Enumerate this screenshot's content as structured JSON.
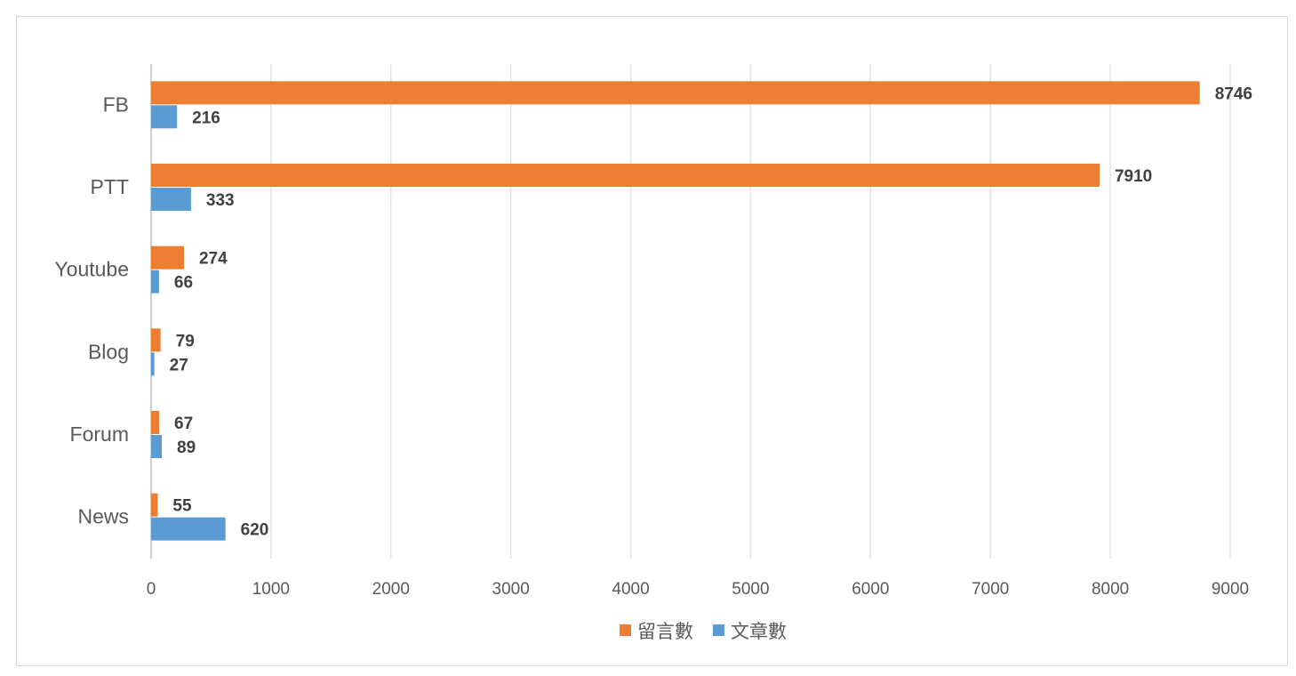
{
  "chart_data": {
    "type": "bar",
    "orientation": "horizontal",
    "title": "",
    "xlabel": "",
    "ylabel": "",
    "categories": [
      "FB",
      "PTT",
      "Youtube",
      "Blog",
      "Forum",
      "News"
    ],
    "series": [
      {
        "name": "留言數",
        "color": "#ED7D31",
        "values": [
          8746,
          7910,
          274,
          79,
          67,
          55
        ]
      },
      {
        "name": "文章數",
        "color": "#5B9BD5",
        "values": [
          216,
          333,
          66,
          27,
          89,
          620
        ]
      }
    ],
    "xlim": [
      0,
      9000
    ],
    "xticks": [
      0,
      1000,
      2000,
      3000,
      4000,
      5000,
      6000,
      7000,
      8000,
      9000
    ],
    "grid": true,
    "legend": "bottom",
    "data_labels": true
  }
}
